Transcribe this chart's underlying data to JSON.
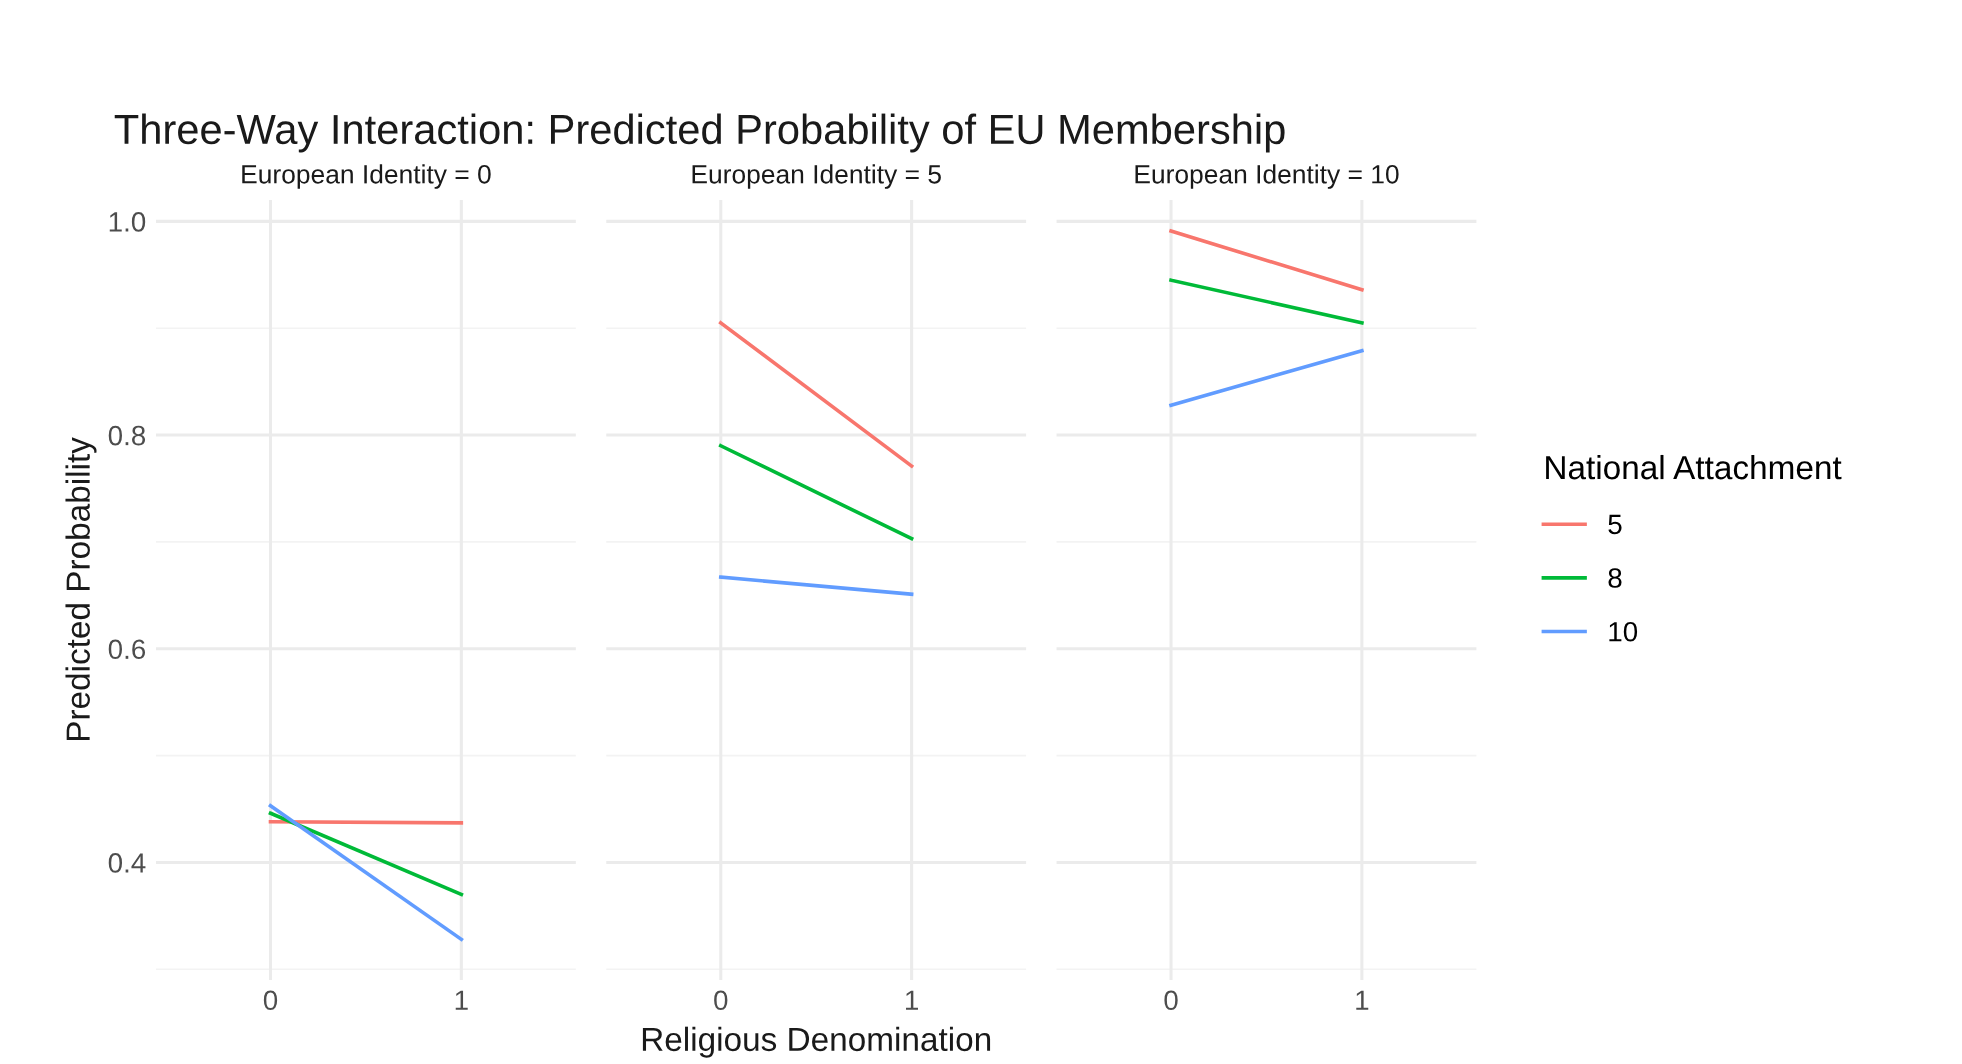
{
  "chart_data": [
    {
      "type": "line",
      "title": "Three-Way Interaction: Predicted Probability of EU Membership",
      "subtitle": "European Identity = 0",
      "ylabel": "Predicted Probability",
      "categories": [
        "0",
        "1"
      ],
      "ylim": [
        0.29,
        1.02
      ],
      "yticks": [
        0.4,
        0.6,
        0.8,
        {
          "value": 1,
          "label": "1.0"
        }
      ],
      "grid": true,
      "series": [
        {
          "color": "#f8766d",
          "values": [
            0.438,
            0.437
          ]
        },
        {
          "color": "#00ba38",
          "values": [
            0.446,
            0.37
          ]
        },
        {
          "color": "#619cff",
          "values": [
            0.453,
            0.328
          ]
        }
      ]
    },
    {
      "type": "line",
      "subtitle": "European Identity = 5",
      "xlabel": "Religious Denomination",
      "categories": [
        "0",
        "1"
      ],
      "ylim": [
        0.29,
        1.02
      ],
      "yticks": [
        0.4,
        0.6,
        0.8,
        1
      ],
      "grid": true,
      "tick_labels": "x",
      "series": [
        {
          "color": "#f8766d",
          "values": [
            0.905,
            0.771
          ]
        },
        {
          "color": "#00ba38",
          "values": [
            0.79,
            0.703
          ]
        },
        {
          "color": "#619cff",
          "values": [
            0.667,
            0.651
          ]
        }
      ]
    },
    {
      "type": "line",
      "subtitle": "European Identity = 10",
      "legend_title": "National Attachment",
      "legend": "right",
      "categories": [
        "0",
        "1"
      ],
      "ylim": [
        0.29,
        1.02
      ],
      "yticks": [
        0.4,
        0.6,
        0.8,
        1
      ],
      "grid": true,
      "tick_labels": "x",
      "series": [
        {
          "name": "5",
          "color": "#f8766d",
          "values": [
            0.991,
            0.936
          ]
        },
        {
          "name": "8",
          "color": "#00ba38",
          "values": [
            0.945,
            0.905
          ]
        },
        {
          "name": "10",
          "color": "#619cff",
          "values": [
            0.828,
            0.879
          ]
        }
      ]
    }
  ]
}
